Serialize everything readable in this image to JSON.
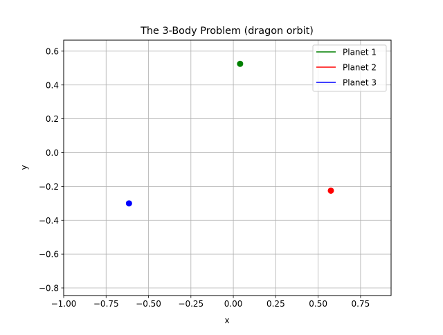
{
  "chart_data": {
    "type": "scatter",
    "title": "The 3-Body Problem (dragon orbit)",
    "xlabel": "x",
    "ylabel": "y",
    "xlim": [
      -1.0,
      0.93
    ],
    "ylim": [
      -0.845,
      0.665
    ],
    "grid": true,
    "legend_position": "top-right",
    "xticks": [
      {
        "value": -1.0,
        "label": "−1.00"
      },
      {
        "value": -0.75,
        "label": "−0.75"
      },
      {
        "value": -0.5,
        "label": "−0.50"
      },
      {
        "value": -0.25,
        "label": "−0.25"
      },
      {
        "value": 0.0,
        "label": "0.00"
      },
      {
        "value": 0.25,
        "label": "0.25"
      },
      {
        "value": 0.5,
        "label": "0.50"
      },
      {
        "value": 0.75,
        "label": "0.75"
      }
    ],
    "yticks": [
      {
        "value": 0.6,
        "label": "0.6"
      },
      {
        "value": 0.4,
        "label": "0.4"
      },
      {
        "value": 0.2,
        "label": "0.2"
      },
      {
        "value": 0.0,
        "label": "0.0"
      },
      {
        "value": -0.2,
        "label": "−0.2"
      },
      {
        "value": -0.4,
        "label": "−0.4"
      },
      {
        "value": -0.6,
        "label": "−0.6"
      },
      {
        "value": -0.8,
        "label": "−0.8"
      }
    ],
    "series": [
      {
        "name": "Planet 1",
        "color": "#008000",
        "points": [
          {
            "x": 0.04,
            "y": 0.525
          }
        ]
      },
      {
        "name": "Planet 2",
        "color": "#ff0000",
        "points": [
          {
            "x": 0.575,
            "y": -0.225
          }
        ]
      },
      {
        "name": "Planet 3",
        "color": "#0000ff",
        "points": [
          {
            "x": -0.615,
            "y": -0.3
          }
        ]
      }
    ]
  }
}
